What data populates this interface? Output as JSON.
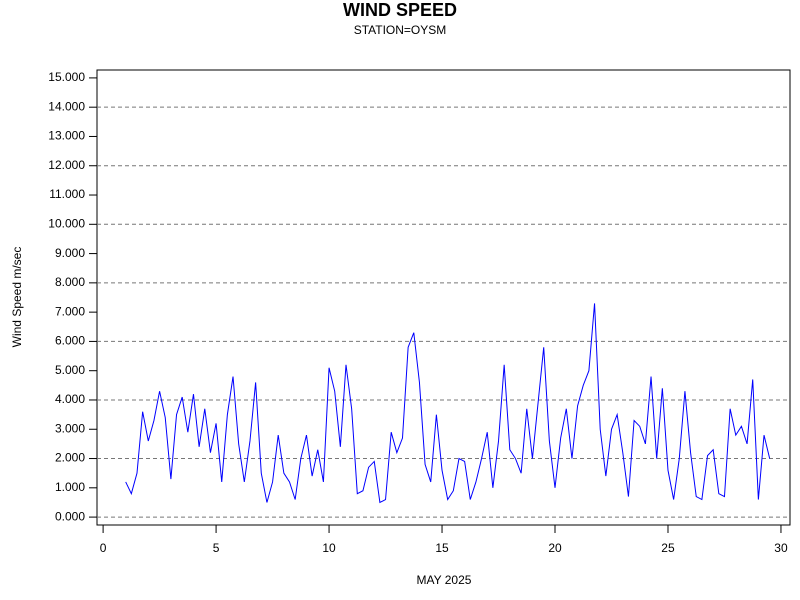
{
  "chart_data": {
    "type": "line",
    "title": "WIND SPEED",
    "subtitle": "STATION=OYSM",
    "x_label": "MAY 2025",
    "y_label": "Wind Speed m/sec",
    "xlim": [
      -0.27,
      30.4
    ],
    "ylim": [
      -0.27,
      15.27
    ],
    "xticks": [
      0,
      5,
      10,
      15,
      20,
      25,
      30
    ],
    "yticks": [
      {
        "value": 0,
        "label": "0.000"
      },
      {
        "value": 1,
        "label": "1.000"
      },
      {
        "value": 2,
        "label": "2.000"
      },
      {
        "value": 3,
        "label": "3.000"
      },
      {
        "value": 4,
        "label": "4.000"
      },
      {
        "value": 5,
        "label": "5.000"
      },
      {
        "value": 6,
        "label": "6.000"
      },
      {
        "value": 7,
        "label": "7.000"
      },
      {
        "value": 8,
        "label": "8.000"
      },
      {
        "value": 9,
        "label": "9.000"
      },
      {
        "value": 10,
        "label": "10.000"
      },
      {
        "value": 11,
        "label": "11.000"
      },
      {
        "value": 12,
        "label": "12.000"
      },
      {
        "value": 13,
        "label": "13.000"
      },
      {
        "value": 14,
        "label": "14.000"
      },
      {
        "value": 15,
        "label": "15.000"
      }
    ],
    "grid_values": [
      0,
      2,
      4,
      6,
      8,
      10,
      12,
      14
    ],
    "x": [
      1,
      1.25,
      1.5,
      1.75,
      2,
      2.25,
      2.5,
      2.75,
      3,
      3.25,
      3.5,
      3.75,
      4,
      4.25,
      4.5,
      4.75,
      5,
      5.25,
      5.5,
      5.75,
      6,
      6.25,
      6.5,
      6.75,
      7,
      7.25,
      7.5,
      7.75,
      8,
      8.25,
      8.5,
      8.75,
      9,
      9.25,
      9.5,
      9.75,
      10,
      10.25,
      10.5,
      10.75,
      11,
      11.25,
      11.5,
      11.75,
      12,
      12.25,
      12.5,
      12.75,
      13,
      13.25,
      13.5,
      13.75,
      14,
      14.25,
      14.5,
      14.75,
      15,
      15.25,
      15.5,
      15.75,
      16,
      16.25,
      16.5,
      16.75,
      17,
      17.25,
      17.5,
      17.75,
      18,
      18.25,
      18.5,
      18.75,
      19,
      19.25,
      19.5,
      19.75,
      20,
      20.25,
      20.5,
      20.75,
      21,
      21.25,
      21.5,
      21.75,
      22,
      22.25,
      22.5,
      22.75,
      23,
      23.25,
      23.5,
      23.75,
      24,
      24.25,
      24.5,
      24.75,
      25,
      25.25,
      25.5,
      25.75,
      26,
      26.25,
      26.5,
      26.75,
      27,
      27.25,
      27.5,
      27.75,
      28,
      28.25,
      28.5,
      28.75,
      29,
      29.25,
      29.5
    ],
    "series": [
      {
        "color": "#0000ff",
        "values": [
          1.2,
          0.8,
          1.5,
          3.6,
          2.6,
          3.3,
          4.3,
          3.4,
          1.3,
          3.5,
          4.1,
          2.9,
          4.2,
          2.4,
          3.7,
          2.2,
          3.2,
          1.2,
          3.5,
          4.8,
          2.5,
          1.2,
          2.6,
          4.6,
          1.5,
          0.5,
          1.2,
          2.8,
          1.5,
          1.2,
          0.6,
          2.0,
          2.8,
          1.4,
          2.3,
          1.2,
          5.1,
          4.3,
          2.4,
          5.2,
          3.7,
          0.8,
          0.9,
          1.7,
          1.9,
          0.5,
          0.6,
          2.9,
          2.2,
          2.7,
          5.8,
          6.3,
          4.6,
          1.8,
          1.2,
          3.5,
          1.6,
          0.6,
          0.9,
          2.0,
          1.9,
          0.6,
          1.2,
          2.0,
          2.9,
          1.0,
          2.6,
          5.2,
          2.3,
          2.0,
          1.5,
          3.7,
          2.0,
          3.9,
          5.8,
          2.6,
          1.0,
          2.7,
          3.7,
          2.0,
          3.8,
          4.5,
          5.0,
          7.3,
          3.0,
          1.4,
          3.0,
          3.5,
          2.2,
          0.7,
          3.3,
          3.1,
          2.5,
          4.8,
          2.0,
          4.4,
          1.6,
          0.6,
          2.0,
          4.3,
          2.2,
          0.7,
          0.6,
          2.1,
          2.3,
          0.8,
          0.7,
          3.7,
          2.8,
          3.1,
          2.5,
          4.7,
          0.6,
          2.8,
          2.0
        ]
      }
    ]
  }
}
